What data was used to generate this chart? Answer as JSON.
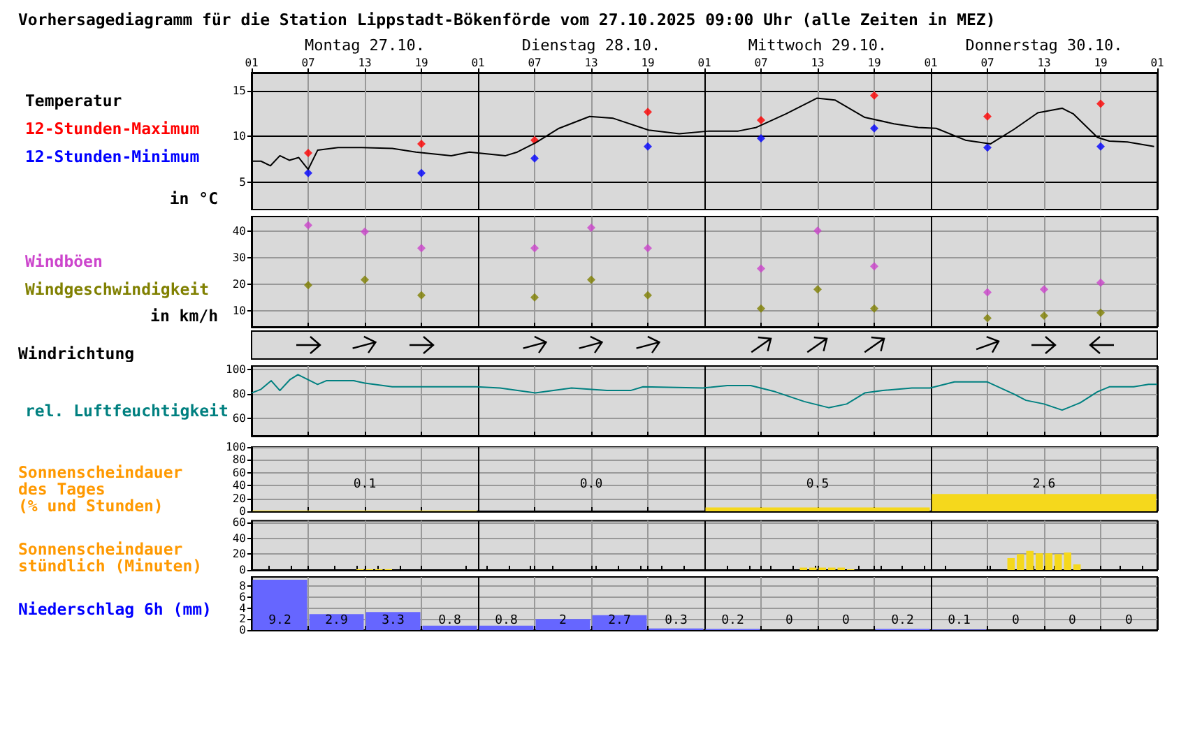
{
  "chart_data": [
    {
      "type": "line",
      "title": "Vorhersagediagramm für die Station Lippstadt-Bökenförde vom 27.10.2025 09:00 Uhr (alle Zeiten in MEZ)",
      "ylabel": "in °C",
      "legend": "left",
      "grid": true,
      "xlim": [
        "2025-10-27T01:00",
        "2025-10-31T01:00"
      ],
      "xticks": [
        {
          "value": "2025-10-27T01:00",
          "label": "01"
        },
        {
          "value": "2025-10-27T07:00",
          "label": "07"
        },
        {
          "value": "2025-10-27T13:00",
          "label": "13"
        },
        {
          "value": "2025-10-27T19:00",
          "label": "19"
        },
        {
          "value": "2025-10-28T01:00",
          "label": "01"
        },
        {
          "value": "2025-10-28T07:00",
          "label": "07"
        },
        {
          "value": "2025-10-28T13:00",
          "label": "13"
        },
        {
          "value": "2025-10-28T19:00",
          "label": "19"
        },
        {
          "value": "2025-10-29T01:00",
          "label": "01"
        },
        {
          "value": "2025-10-29T07:00",
          "label": "07"
        },
        {
          "value": "2025-10-29T13:00",
          "label": "13"
        },
        {
          "value": "2025-10-29T19:00",
          "label": "19"
        },
        {
          "value": "2025-10-30T01:00",
          "label": "01"
        },
        {
          "value": "2025-10-30T07:00",
          "label": "07"
        },
        {
          "value": "2025-10-30T13:00",
          "label": "13"
        },
        {
          "value": "2025-10-30T19:00",
          "label": "19"
        },
        {
          "value": "2025-10-31T01:00",
          "label": "01"
        }
      ],
      "x2lim": [
        "2025-10-27T01:00",
        "2025-10-31T01:00"
      ],
      "x2ticks": [
        {
          "value": "2025-10-27T13:00",
          "label": "Montag 27.10."
        },
        {
          "value": "2025-10-28T13:00",
          "label": "Dienstag 28.10."
        },
        {
          "value": "2025-10-29T13:00",
          "label": "Mittwoch 29.10."
        },
        {
          "value": "2025-10-30T13:00",
          "label": "Donnerstag 30.10."
        }
      ],
      "ylim": [
        2,
        17
      ],
      "yticks": [
        5,
        10,
        15
      ],
      "series": [
        {
          "name": "Temperatur",
          "color": "#000000",
          "marker": "none",
          "x": [
            "2025-10-27T01:00",
            "2025-10-27T02:00",
            "2025-10-27T03:00",
            "2025-10-27T04:00",
            "2025-10-27T05:00",
            "2025-10-27T06:00",
            "2025-10-27T07:00",
            "2025-10-27T08:00",
            "2025-10-27T10:10",
            "2025-10-27T12:40",
            "2025-10-27T15:55",
            "2025-10-27T18:25",
            "2025-10-27T22:10",
            "2025-10-28T00:05",
            "2025-10-28T03:55",
            "2025-10-28T05:10",
            "2025-10-28T07:05",
            "2025-10-28T09:35",
            "2025-10-28T12:50",
            "2025-10-28T15:20",
            "2025-10-28T19:05",
            "2025-10-28T22:20",
            "2025-10-29T01:30",
            "2025-10-29T04:35",
            "2025-10-29T06:30",
            "2025-10-29T09:40",
            "2025-10-29T12:55",
            "2025-10-29T14:50",
            "2025-10-29T18:00",
            "2025-10-29T21:05",
            "2025-10-29T23:40",
            "2025-10-30T01:35",
            "2025-10-30T04:40",
            "2025-10-30T07:20",
            "2025-10-30T09:50",
            "2025-10-30T12:20",
            "2025-10-30T14:55",
            "2025-10-30T16:05",
            "2025-10-30T18:40",
            "2025-10-30T19:55",
            "2025-10-30T21:50",
            "2025-10-31T00:40"
          ],
          "values": [
            7.3,
            7.3,
            6.8,
            7.9,
            7.4,
            7.7,
            6.4,
            8.5,
            8.8,
            8.8,
            8.7,
            8.3,
            7.9,
            8.3,
            7.9,
            8.3,
            9.3,
            10.9,
            12.2,
            12.0,
            10.7,
            10.3,
            10.6,
            10.6,
            11.0,
            12.5,
            14.2,
            14.0,
            12.1,
            11.4,
            11.0,
            10.9,
            9.6,
            9.2,
            10.8,
            12.6,
            13.1,
            12.5,
            9.9,
            9.5,
            9.4,
            8.9
          ]
        },
        {
          "name": "12-Stunden-Maximum",
          "type": "scatter",
          "marker": "diamond",
          "color": "#ff0000",
          "x": [
            "2025-10-27T07:00",
            "2025-10-27T19:00",
            "2025-10-28T07:00",
            "2025-10-28T19:00",
            "2025-10-29T07:00",
            "2025-10-29T19:00",
            "2025-10-30T07:00",
            "2025-10-30T19:00"
          ],
          "values": [
            8.2,
            9.2,
            9.6,
            12.7,
            11.8,
            14.5,
            12.2,
            13.6
          ]
        },
        {
          "name": "12-Stunden-Minimum",
          "type": "scatter",
          "marker": "diamond",
          "color": "#0000ff",
          "x": [
            "2025-10-27T07:00",
            "2025-10-27T19:00",
            "2025-10-28T07:00",
            "2025-10-28T19:00",
            "2025-10-29T07:00",
            "2025-10-29T19:00",
            "2025-10-30T07:00",
            "2025-10-30T19:00"
          ],
          "values": [
            6.0,
            6.0,
            7.6,
            8.9,
            9.8,
            10.9,
            8.8,
            8.9
          ]
        }
      ]
    },
    {
      "type": "scatter",
      "ylabel": "in km/h",
      "legend": "left",
      "grid": true,
      "marker": "diamond",
      "tick_labels": "y",
      "xlim": [
        "2025-10-27T01:00",
        "2025-10-31T01:00"
      ],
      "xticks": [
        "2025-10-27T01:00",
        "2025-10-27T07:00",
        "2025-10-27T13:00",
        "2025-10-27T19:00",
        "2025-10-28T01:00",
        "2025-10-28T07:00",
        "2025-10-28T13:00",
        "2025-10-28T19:00",
        "2025-10-29T01:00",
        "2025-10-29T07:00",
        "2025-10-29T13:00",
        "2025-10-29T19:00",
        "2025-10-30T01:00",
        "2025-10-30T07:00",
        "2025-10-30T13:00",
        "2025-10-30T19:00",
        "2025-10-31T01:00"
      ],
      "ylim": [
        4,
        45.5
      ],
      "yticks": [
        10,
        20,
        30,
        40
      ],
      "series": [
        {
          "name": "Windböen",
          "color": "#cc44cc",
          "x": [
            "2025-10-27T07:00",
            "2025-10-27T13:00",
            "2025-10-27T19:00",
            "2025-10-28T07:00",
            "2025-10-28T13:00",
            "2025-10-28T19:00",
            "2025-10-29T07:00",
            "2025-10-29T13:00",
            "2025-10-29T19:00",
            "2025-10-30T07:00",
            "2025-10-30T13:00",
            "2025-10-30T19:00"
          ],
          "values": [
            42.2,
            39.8,
            33.6,
            33.6,
            41.3,
            33.6,
            25.9,
            40.2,
            26.8,
            17.0,
            18.1,
            20.6
          ]
        },
        {
          "name": "Windgeschwindigkeit",
          "color": "#808000",
          "x": [
            "2025-10-27T07:00",
            "2025-10-27T13:00",
            "2025-10-27T19:00",
            "2025-10-28T07:00",
            "2025-10-28T13:00",
            "2025-10-28T19:00",
            "2025-10-29T07:00",
            "2025-10-29T13:00",
            "2025-10-29T19:00",
            "2025-10-30T07:00",
            "2025-10-30T13:00",
            "2025-10-30T19:00"
          ],
          "values": [
            19.7,
            21.7,
            15.9,
            15.1,
            21.7,
            15.9,
            10.9,
            18.1,
            10.9,
            7.3,
            8.2,
            9.3
          ]
        }
      ]
    },
    {
      "type": "other",
      "title": "Windrichtung"
    },
    {
      "type": "line",
      "legend": "left",
      "grid": true,
      "tick_labels": "y",
      "xlim": [
        "2025-10-27T01:00",
        "2025-10-31T01:00"
      ],
      "xticks": [
        "2025-10-27T01:00",
        "2025-10-27T07:00",
        "2025-10-27T13:00",
        "2025-10-27T19:00",
        "2025-10-28T01:00",
        "2025-10-28T07:00",
        "2025-10-28T13:00",
        "2025-10-28T19:00",
        "2025-10-29T01:00",
        "2025-10-29T07:00",
        "2025-10-29T13:00",
        "2025-10-29T19:00",
        "2025-10-30T01:00",
        "2025-10-30T07:00",
        "2025-10-30T13:00",
        "2025-10-30T19:00",
        "2025-10-31T01:00"
      ],
      "ylim": [
        46,
        103
      ],
      "yticks": [
        60,
        80,
        100
      ],
      "series": [
        {
          "name": "rel. Luftfeuchtigkeit",
          "color": "#008080",
          "x": [
            "2025-10-27T01:00",
            "2025-10-27T02:00",
            "2025-10-27T03:05",
            "2025-10-27T04:00",
            "2025-10-27T05:05",
            "2025-10-27T05:55",
            "2025-10-27T08:00",
            "2025-10-27T08:55",
            "2025-10-27T11:50",
            "2025-10-27T13:00",
            "2025-10-27T15:55",
            "2025-10-27T20:20",
            "2025-10-28T00:50",
            "2025-10-28T03:20",
            "2025-10-28T07:05",
            "2025-10-28T10:55",
            "2025-10-28T14:40",
            "2025-10-28T17:10",
            "2025-10-28T18:30",
            "2025-10-29T00:50",
            "2025-10-29T03:25",
            "2025-10-29T05:55",
            "2025-10-29T08:30",
            "2025-10-29T11:35",
            "2025-10-29T14:10",
            "2025-10-29T16:05",
            "2025-10-29T18:00",
            "2025-10-29T19:55",
            "2025-10-29T23:00",
            "2025-10-30T00:55",
            "2025-10-30T03:30",
            "2025-10-30T07:00",
            "2025-10-30T09:50",
            "2025-10-30T11:05",
            "2025-10-30T13:00",
            "2025-10-30T14:55",
            "2025-10-30T16:50",
            "2025-10-30T18:40",
            "2025-10-30T19:55",
            "2025-10-30T22:30",
            "2025-10-31T00:05",
            "2025-10-31T01:00"
          ],
          "values": [
            81,
            84,
            91,
            83,
            92,
            96,
            88,
            91,
            91,
            89,
            86,
            86,
            86,
            85,
            81,
            85,
            83,
            83,
            86,
            85,
            87,
            87,
            82,
            74,
            69,
            72,
            81,
            83,
            85,
            85,
            90,
            90,
            80,
            75,
            72,
            67,
            73,
            82,
            86,
            86,
            88,
            88
          ]
        }
      ]
    },
    {
      "type": "bar",
      "title": "Sonnenscheindauer\ndes Tages\n(% und Stunden)",
      "grid": true,
      "tick_labels": "y",
      "annotations": [
        "0.1",
        "0.0",
        "0.5",
        "2.6"
      ],
      "xlim": [
        "2025-10-27T01:00",
        "2025-10-31T01:00"
      ],
      "xticks": [
        "2025-10-27T01:00",
        "2025-10-27T07:00",
        "2025-10-27T13:00",
        "2025-10-27T19:00",
        "2025-10-28T01:00",
        "2025-10-28T07:00",
        "2025-10-28T13:00",
        "2025-10-28T19:00",
        "2025-10-29T01:00",
        "2025-10-29T07:00",
        "2025-10-29T13:00",
        "2025-10-29T19:00",
        "2025-10-30T01:00",
        "2025-10-30T07:00",
        "2025-10-30T13:00",
        "2025-10-30T19:00",
        "2025-10-31T01:00"
      ],
      "ylim": [
        0,
        100
      ],
      "yticks": [
        0,
        20,
        40,
        60,
        80,
        100
      ],
      "series": [
        {
          "color": "#f5d81c",
          "x": [
            "2025-10-27T13:00",
            "2025-10-28T13:00",
            "2025-10-29T13:00",
            "2025-10-30T13:00"
          ],
          "values": [
            1,
            0,
            6,
            27
          ]
        }
      ]
    },
    {
      "type": "bar",
      "title": "Sonnenscheindauer\nstündlich (Minuten)",
      "grid": true,
      "tick_labels": "y",
      "xlim": [
        "2025-10-27T01:00",
        "2025-10-31T01:00"
      ],
      "xticks": [
        "2025-10-27T01:00",
        "2025-10-27T07:00",
        "2025-10-27T13:00",
        "2025-10-27T19:00",
        "2025-10-28T01:00",
        "2025-10-28T07:00",
        "2025-10-28T13:00",
        "2025-10-28T19:00",
        "2025-10-29T01:00",
        "2025-10-29T07:00",
        "2025-10-29T13:00",
        "2025-10-29T19:00",
        "2025-10-30T01:00",
        "2025-10-30T07:00",
        "2025-10-30T13:00",
        "2025-10-30T19:00",
        "2025-10-31T01:00"
      ],
      "ylim": [
        0,
        62
      ],
      "yticks": [
        0,
        20,
        40,
        60
      ],
      "series": [
        {
          "color": "#f5d81c",
          "x": [
            "2025-10-27T12:30",
            "2025-10-27T13:30",
            "2025-10-27T14:30",
            "2025-10-27T15:30",
            "2025-10-29T11:30",
            "2025-10-29T12:30",
            "2025-10-29T13:30",
            "2025-10-29T14:30",
            "2025-10-29T15:30",
            "2025-10-29T16:30",
            "2025-10-30T09:30",
            "2025-10-30T10:30",
            "2025-10-30T11:30",
            "2025-10-30T12:30",
            "2025-10-30T13:30",
            "2025-10-30T14:30",
            "2025-10-30T15:30",
            "2025-10-30T16:30"
          ],
          "values": [
            1,
            1,
            1,
            1,
            3,
            3,
            3,
            3,
            3,
            1,
            15,
            20,
            24,
            21,
            21,
            20,
            22,
            7
          ]
        }
      ]
    },
    {
      "type": "bar",
      "title": "Niederschlag 6h (mm)",
      "grid": true,
      "tick_labels": "y",
      "data_labels": true,
      "xlim": [
        "2025-10-27T01:00",
        "2025-10-31T01:00"
      ],
      "xticks": [
        "2025-10-27T01:00",
        "2025-10-27T07:00",
        "2025-10-27T13:00",
        "2025-10-27T19:00",
        "2025-10-28T01:00",
        "2025-10-28T07:00",
        "2025-10-28T13:00",
        "2025-10-28T19:00",
        "2025-10-29T01:00",
        "2025-10-29T07:00",
        "2025-10-29T13:00",
        "2025-10-29T19:00",
        "2025-10-30T01:00",
        "2025-10-30T07:00",
        "2025-10-30T13:00",
        "2025-10-30T19:00",
        "2025-10-31T01:00"
      ],
      "ylim": [
        0,
        9.7
      ],
      "yticks": [
        0,
        2,
        4,
        6,
        8
      ],
      "series": [
        {
          "color": "#6666ff",
          "x": [
            "2025-10-27T04:00",
            "2025-10-27T10:00",
            "2025-10-27T16:00",
            "2025-10-27T22:00",
            "2025-10-28T04:00",
            "2025-10-28T10:00",
            "2025-10-28T16:00",
            "2025-10-28T22:00",
            "2025-10-29T04:00",
            "2025-10-29T10:00",
            "2025-10-29T16:00",
            "2025-10-29T22:00",
            "2025-10-30T04:00",
            "2025-10-30T10:00",
            "2025-10-30T16:00",
            "2025-10-30T22:00"
          ],
          "values": [
            9.2,
            2.9,
            3.3,
            0.8,
            0.8,
            2,
            2.7,
            0.3,
            0.2,
            0,
            0,
            0.2,
            0.1,
            0,
            0,
            0
          ]
        }
      ]
    }
  ]
}
